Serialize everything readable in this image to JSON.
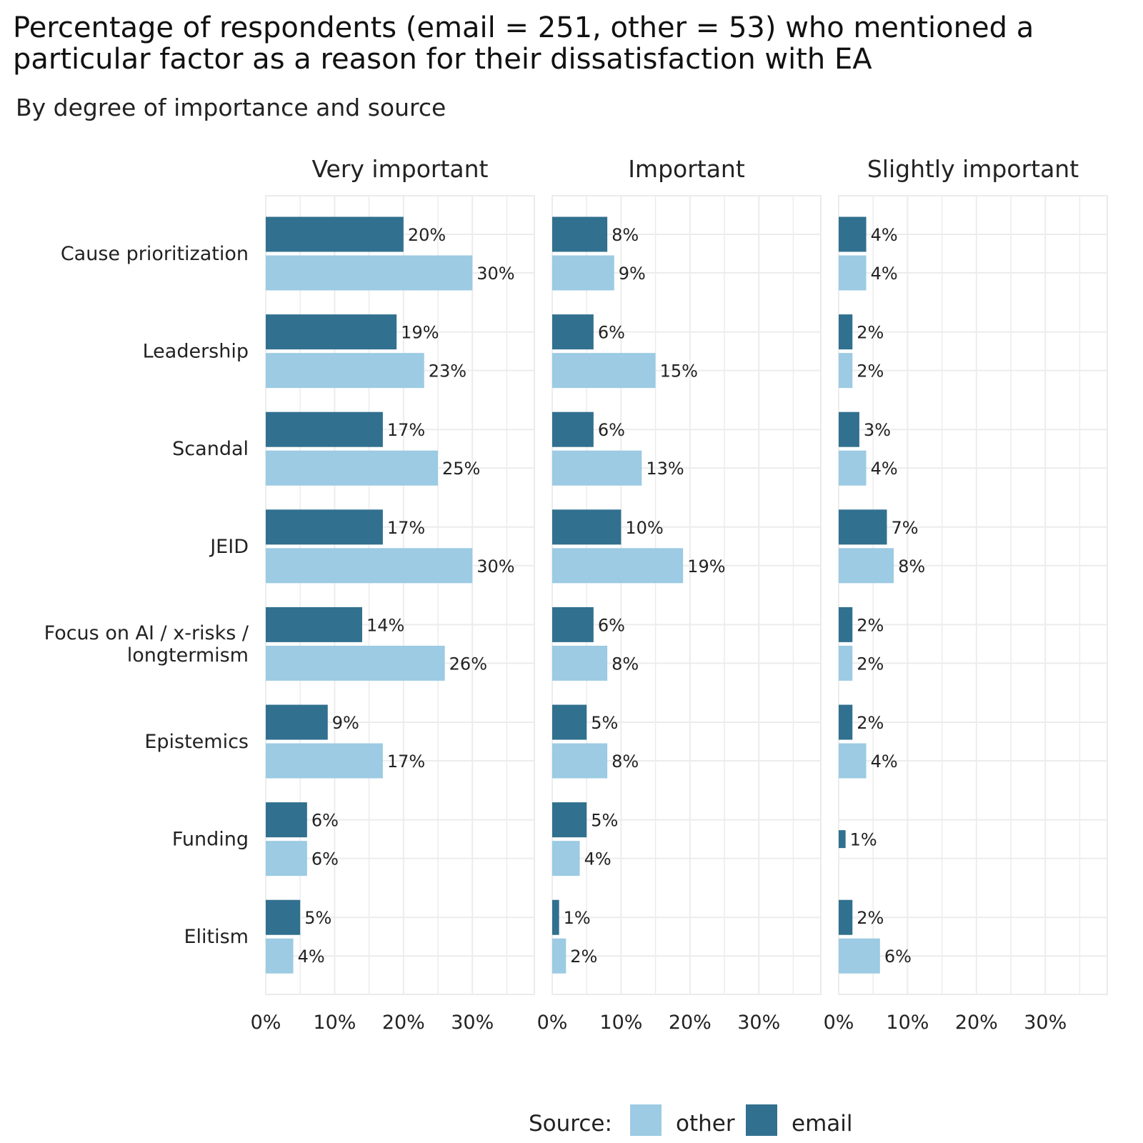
{
  "chart_data": {
    "type": "bar",
    "orientation": "horizontal",
    "title_lines": [
      "Percentage of respondents (email = 251, other = 53) who mentioned a",
      "particular factor as a reason for their dissatisfaction with EA"
    ],
    "subtitle": "By degree of importance and source",
    "facets": [
      "Very important",
      "Important",
      "Slightly important"
    ],
    "categories": [
      [
        "Cause prioritization"
      ],
      [
        "Leadership"
      ],
      [
        "Scandal"
      ],
      [
        "JEID"
      ],
      [
        "Focus on AI / x-risks /",
        "longtermism"
      ],
      [
        "Epistemics"
      ],
      [
        "Funding"
      ],
      [
        "Elitism"
      ]
    ],
    "series": [
      {
        "name": "email",
        "color": "#31708f",
        "values": [
          [
            20,
            19,
            17,
            17,
            14,
            9,
            6,
            5
          ],
          [
            8,
            6,
            6,
            10,
            6,
            5,
            5,
            1
          ],
          [
            4,
            2,
            3,
            7,
            2,
            2,
            1,
            2
          ]
        ]
      },
      {
        "name": "other",
        "color": "#9ccbe3",
        "values": [
          [
            30,
            23,
            25,
            30,
            26,
            17,
            6,
            4
          ],
          [
            9,
            15,
            13,
            19,
            8,
            8,
            4,
            2
          ],
          [
            4,
            2,
            4,
            8,
            2,
            4,
            null,
            6
          ]
        ]
      }
    ],
    "xlim": [
      0,
      39
    ],
    "xticks": [
      0,
      10,
      20,
      30
    ],
    "tick_suffix": "%",
    "grid": true,
    "legend": {
      "title": "Source:",
      "placement": "bottom",
      "items": [
        {
          "label": "other",
          "color": "#9ccbe3"
        },
        {
          "label": "email",
          "color": "#31708f"
        }
      ]
    }
  }
}
